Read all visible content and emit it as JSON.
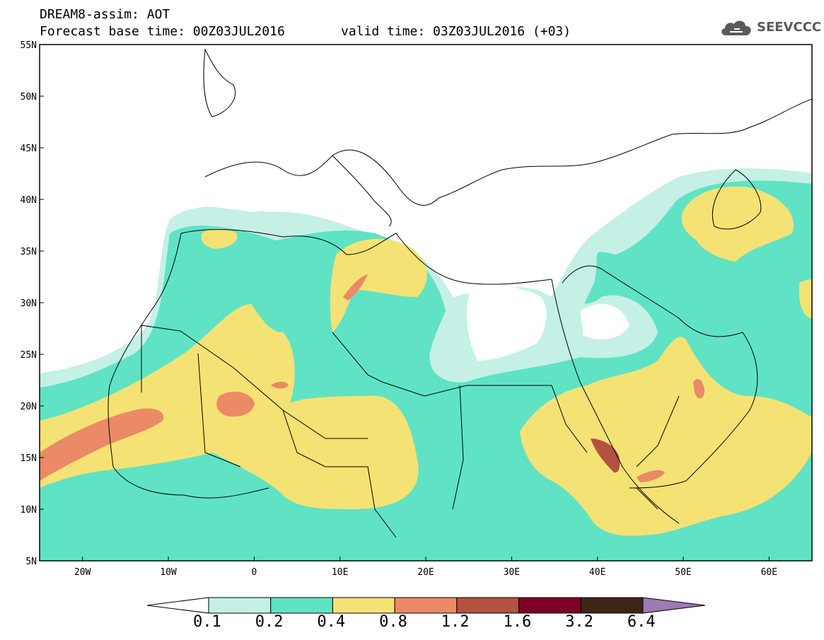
{
  "header": {
    "title_line1": "DREAM8-assim: AOT",
    "title_line2": "Forecast base time: 00Z03JUL2016",
    "valid_time": "valid time: 03Z03JUL2016 (+03)"
  },
  "logo": {
    "text": "SEEVCCC",
    "icon": "cloud-icon"
  },
  "map": {
    "lat_labels": [
      "55N",
      "50N",
      "45N",
      "40N",
      "35N",
      "30N",
      "25N",
      "20N",
      "15N",
      "10N",
      "5N"
    ],
    "lon_labels": [
      "20W",
      "10W",
      "0",
      "10E",
      "20E",
      "30E",
      "40E",
      "50E",
      "60E"
    ],
    "lon_range": [
      -25,
      65
    ],
    "lat_range": [
      5,
      55
    ],
    "colors": {
      "0.1": "#c4f0e6",
      "0.2": "#5fe3c4",
      "0.4": "#f5e275",
      "0.8": "#eb8a66",
      "1.2": "#b1533f",
      "1.6": "#7e0026",
      "3.2": "#3d2616",
      "6.4": "#9c7ab3"
    }
  },
  "colorbar": {
    "labels": [
      "0.1",
      "0.2",
      "0.4",
      "0.8",
      "1.2",
      "1.6",
      "3.2",
      "6.4"
    ],
    "colors": [
      "#c4f0e6",
      "#5fe3c4",
      "#f5e275",
      "#eb8a66",
      "#b1533f",
      "#7e0026",
      "#3d2616"
    ],
    "low_arrow_color": "#ffffff",
    "high_arrow_color": "#9c7ab3"
  }
}
